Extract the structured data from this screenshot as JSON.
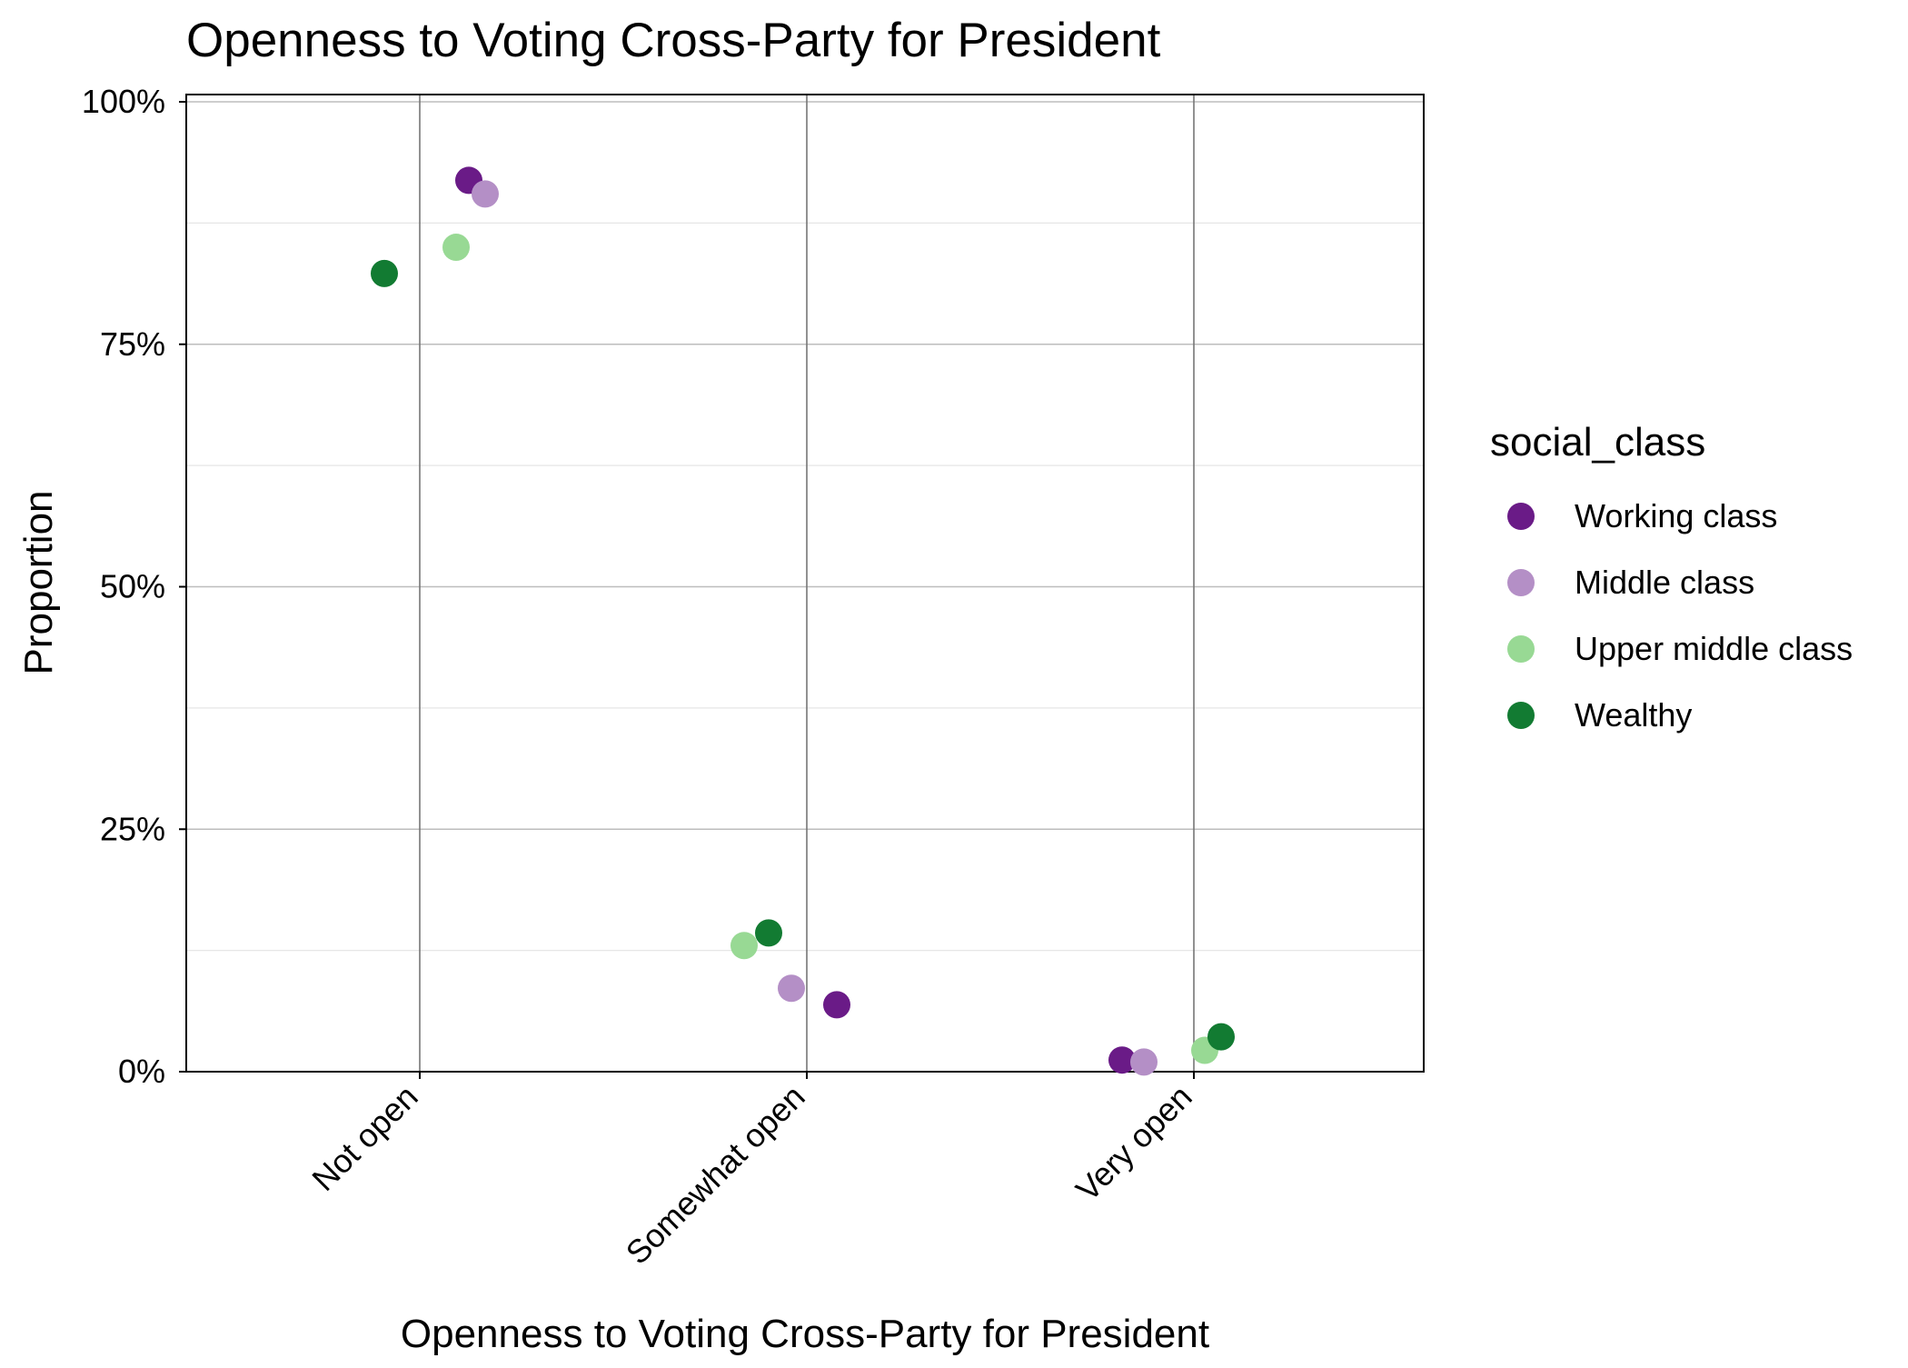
{
  "chart_data": {
    "type": "scatter",
    "title": "Openness to Voting Cross-Party for President",
    "xlabel": "Openness to Voting Cross-Party for President",
    "ylabel": "Proportion",
    "categories": [
      "Not open",
      "Somewhat open",
      "Very open"
    ],
    "ylim": [
      0,
      100
    ],
    "yticks": [
      {
        "value": 0,
        "label": "0%"
      },
      {
        "value": 25,
        "label": "25%"
      },
      {
        "value": 50,
        "label": "50%"
      },
      {
        "value": 75,
        "label": "75%"
      },
      {
        "value": 100,
        "label": "100%"
      }
    ],
    "grid": true,
    "legend": {
      "title": "social_class",
      "position": "right"
    },
    "series": [
      {
        "name": "Working class",
        "color": "#6a1b87",
        "points": [
          {
            "category": "Not open",
            "y": 91.9
          },
          {
            "category": "Somewhat open",
            "y": 6.9
          },
          {
            "category": "Very open",
            "y": 1.2
          }
        ]
      },
      {
        "name": "Middle class",
        "color": "#b48fc6",
        "points": [
          {
            "category": "Not open",
            "y": 90.5
          },
          {
            "category": "Somewhat open",
            "y": 8.6
          },
          {
            "category": "Very open",
            "y": 1.0
          }
        ]
      },
      {
        "name": "Upper middle class",
        "color": "#98d994",
        "points": [
          {
            "category": "Not open",
            "y": 85.0
          },
          {
            "category": "Somewhat open",
            "y": 13.0
          },
          {
            "category": "Very open",
            "y": 2.2
          }
        ]
      },
      {
        "name": "Wealthy",
        "color": "#127b32",
        "points": [
          {
            "category": "Not open",
            "y": 82.3
          },
          {
            "category": "Somewhat open",
            "y": 14.3
          },
          {
            "category": "Very open",
            "y": 3.6
          }
        ]
      }
    ]
  }
}
